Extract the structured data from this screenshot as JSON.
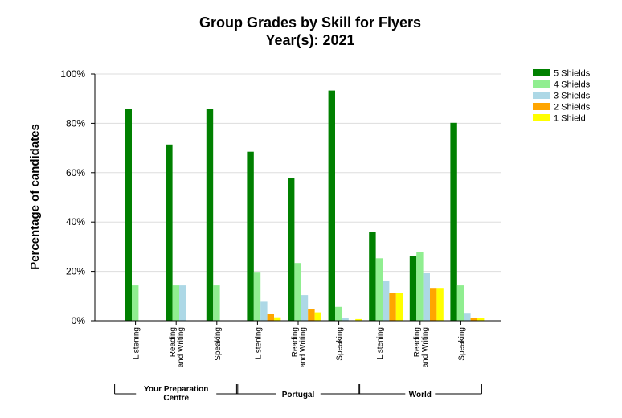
{
  "chart_data": {
    "type": "bar",
    "title": "Group Grades by Skill for Flyers",
    "subtitle": "Year(s): 2021",
    "ylabel": "Percentage of candidates",
    "xlabel": "",
    "ylim": [
      0,
      100
    ],
    "yticks": [
      "0%",
      "20%",
      "40%",
      "60%",
      "80%",
      "100%"
    ],
    "grid": true,
    "legend_position": "top-right",
    "groups": [
      {
        "name": "Your Preparation Centre",
        "lines": [
          "Your Preparation",
          "Centre"
        ]
      },
      {
        "name": "Portugal",
        "lines": [
          "Portugal"
        ]
      },
      {
        "name": "World",
        "lines": [
          "World"
        ]
      }
    ],
    "categories": [
      {
        "label": "Listening",
        "lines": [
          "Listening"
        ],
        "group": 0
      },
      {
        "label": "Reading and Writing",
        "lines": [
          "Reading",
          "and Writing"
        ],
        "group": 0
      },
      {
        "label": "Speaking",
        "lines": [
          "Speaking"
        ],
        "group": 0
      },
      {
        "label": "Listening",
        "lines": [
          "Listening"
        ],
        "group": 1
      },
      {
        "label": "Reading and Writing",
        "lines": [
          "Reading",
          "and Writing"
        ],
        "group": 1
      },
      {
        "label": "Speaking",
        "lines": [
          "Speaking"
        ],
        "group": 1
      },
      {
        "label": "Listening",
        "lines": [
          "Listening"
        ],
        "group": 2
      },
      {
        "label": "Reading and Writing",
        "lines": [
          "Reading",
          "and Writing"
        ],
        "group": 2
      },
      {
        "label": "Speaking",
        "lines": [
          "Speaking"
        ],
        "group": 2
      }
    ],
    "series": [
      {
        "name": "5 Shields",
        "color": "#008000",
        "values": [
          85.7,
          71.4,
          85.7,
          68.5,
          57.9,
          93.3,
          36.0,
          26.3,
          80.2
        ]
      },
      {
        "name": "4 Shields",
        "color": "#90ee90",
        "values": [
          14.3,
          14.3,
          14.3,
          19.8,
          23.4,
          5.6,
          25.3,
          27.9,
          14.3
        ]
      },
      {
        "name": "3 Shields",
        "color": "#add8e6",
        "values": [
          0,
          14.3,
          0,
          7.7,
          10.4,
          1.0,
          16.2,
          19.5,
          3.2
        ]
      },
      {
        "name": "2 Shields",
        "color": "#ffa500",
        "values": [
          0,
          0,
          0,
          2.6,
          4.9,
          0,
          11.3,
          13.3,
          1.3
        ]
      },
      {
        "name": "1 Shield",
        "color": "#ffff00",
        "values": [
          0,
          0,
          0,
          1.4,
          3.4,
          0.7,
          11.3,
          13.3,
          1.0
        ]
      }
    ]
  }
}
